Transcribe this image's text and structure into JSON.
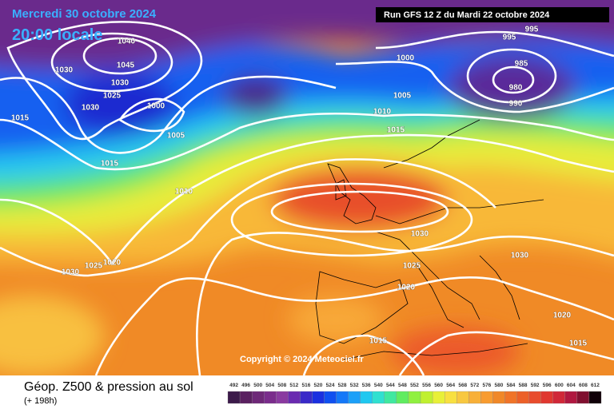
{
  "header": {
    "date": "Mercredi 30 octobre 2024",
    "time": "20:00 locale",
    "run": "Run GFS 12 Z du Mardi 22 octobre 2024"
  },
  "isobar_labels": [
    1015,
    1030,
    1040,
    1045,
    1030,
    1025,
    1030,
    1000,
    1005,
    1015,
    1010,
    1000,
    995,
    995,
    985,
    980,
    990,
    1005,
    1010,
    1015,
    1030,
    1025,
    1020,
    1030,
    1020,
    1015,
    1015,
    1030,
    1025,
    1020
  ],
  "copyright": "Copyright © 2024 Meteociel.fr",
  "legend": {
    "title": "Géop. Z500 & pression au sol",
    "subtitle": "(+ 198h)",
    "scale": [
      492,
      496,
      500,
      504,
      508,
      512,
      516,
      520,
      524,
      528,
      532,
      536,
      540,
      544,
      548,
      552,
      556,
      560,
      564,
      568,
      572,
      576,
      580,
      584,
      588,
      592,
      596,
      600,
      604,
      608,
      612
    ],
    "scale_colors": [
      "#3c1a4a",
      "#5a2060",
      "#6e2878",
      "#7a2c8c",
      "#8a3aa0",
      "#6a2ab0",
      "#3a2ac8",
      "#1a30e0",
      "#1050f0",
      "#1478f8",
      "#1ca0f8",
      "#20c8f0",
      "#30e0d0",
      "#40e8a0",
      "#60ec60",
      "#90f040",
      "#c0f030",
      "#e8f038",
      "#f8e040",
      "#f8c840",
      "#f8b038",
      "#f89c30",
      "#f08828",
      "#f07428",
      "#ec6028",
      "#e84c2c",
      "#e03830",
      "#d02838",
      "#b01840",
      "#801030",
      "#100008"
    ]
  }
}
